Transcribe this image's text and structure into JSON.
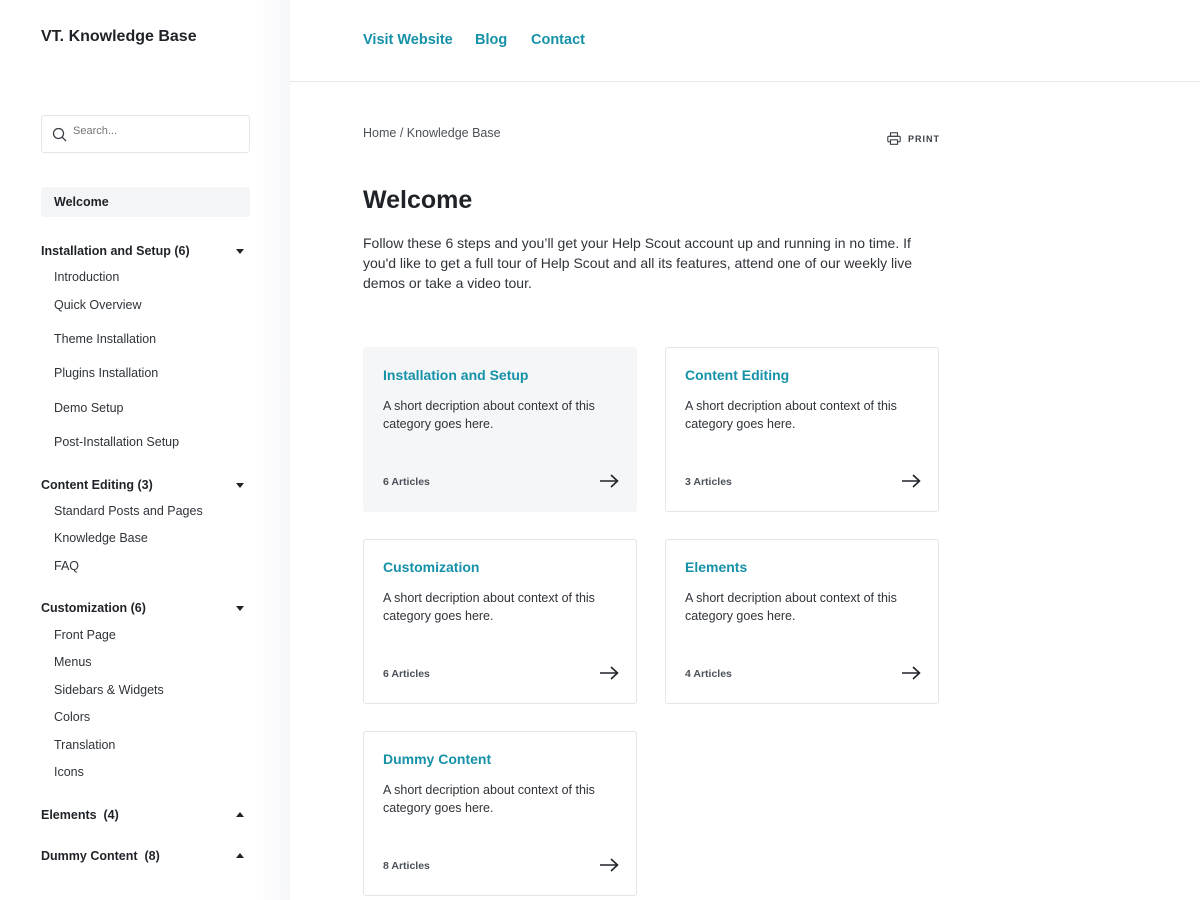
{
  "sidebar": {
    "logo": "VT. Knowledge Base",
    "search_placeholder": "Search...",
    "welcome": "Welcome",
    "groups": [
      {
        "label": "Installation and Setup (6)",
        "expanded": true,
        "items": [
          "Introduction",
          "Quick Overview",
          "Theme Installation",
          "Plugins Installation",
          "Demo Setup",
          "Post-Installation Setup"
        ]
      },
      {
        "label": "Content Editing (3)",
        "expanded": true,
        "items": [
          "Standard Posts and Pages",
          "Knowledge Base",
          "FAQ"
        ]
      },
      {
        "label": "Customization (6)",
        "expanded": true,
        "items": [
          "Front Page",
          "Menus",
          "Sidebars & Widgets",
          "Colors",
          "Translation",
          "Icons"
        ]
      },
      {
        "label": "Elements  (4)",
        "expanded": false,
        "items": []
      },
      {
        "label": "Dummy Content  (8)",
        "expanded": false,
        "items": []
      }
    ]
  },
  "nav": [
    "Visit Website",
    "Blog",
    "Contact"
  ],
  "breadcrumb": "Home / Knowledge Base",
  "print_label": "PRINT",
  "title": "Welcome",
  "intro": "Follow these 6 steps and you’ll get your Help Scout account up and running in no time. If you'd like to get a full tour of Help Scout and all its features, attend one of our weekly live demos or take a video tour.",
  "cards": [
    {
      "title": "Installation and Setup",
      "desc": "A short decription about context of this category goes here.",
      "count": "6 Articles"
    },
    {
      "title": "Content Editing",
      "desc": "A short decription about context of this category goes here.",
      "count": "3 Articles"
    },
    {
      "title": "Customization",
      "desc": "A short decription about context of this category goes here.",
      "count": "6 Articles"
    },
    {
      "title": "Elements",
      "desc": "A short decription about context of this category goes here.",
      "count": "4 Articles"
    },
    {
      "title": "Dummy Content",
      "desc": "A short decription about context of this category goes here.",
      "count": "8 Articles"
    }
  ],
  "colors": {
    "accent": "#1591a8",
    "text": "#1f2328",
    "active_bg": "#f5f6f8"
  }
}
